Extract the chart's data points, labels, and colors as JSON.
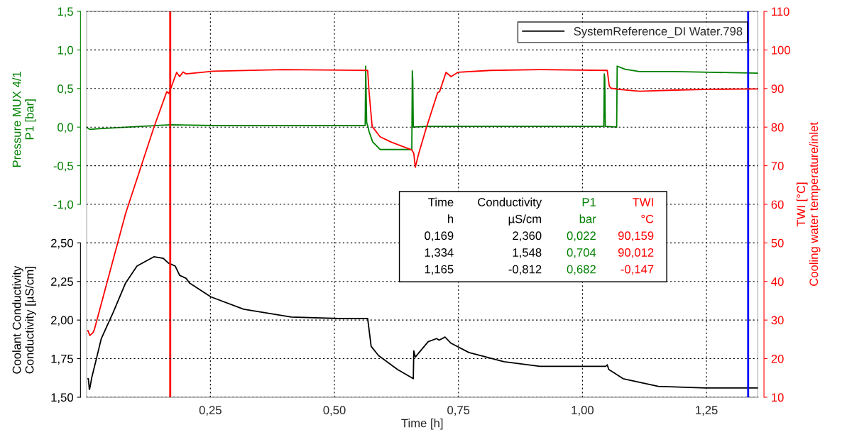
{
  "chart_data": {
    "type": "line",
    "xlabel": "Time [h]",
    "ylabel": "Pressure MUX 4/1\nP1 [bar]",
    "y2label": "TWI [°C]\nCooling water temperature/inlet",
    "y3label": "Coolant Conductivity\nConductivity [µS/cm]",
    "xlim": [
      0,
      1.354
    ],
    "xticks": [
      {
        "value": 0.25,
        "label": "0,25"
      },
      {
        "value": 0.5,
        "label": "0,50"
      },
      {
        "value": 0.75,
        "label": "0,75"
      },
      {
        "value": 1.0,
        "label": "1,00"
      },
      {
        "value": 1.25,
        "label": "1,25"
      }
    ],
    "ylim": [
      -3.5,
      1.5
    ],
    "yticks": [
      {
        "value": -1.0,
        "label": "-1,0"
      },
      {
        "value": -0.5,
        "label": "-0,5"
      },
      {
        "value": 0.0,
        "label": "0,0"
      },
      {
        "value": 0.5,
        "label": "0,5"
      },
      {
        "value": 1.0,
        "label": "1,0"
      },
      {
        "value": 1.5,
        "label": "1,5"
      }
    ],
    "y2lim": [
      10,
      110
    ],
    "y2ticks": [
      10,
      20,
      30,
      40,
      50,
      60,
      70,
      80,
      90,
      100,
      110
    ],
    "y3lim": [
      1.5,
      4.0
    ],
    "y3ticks": [
      {
        "value": 1.5,
        "label": "1,50"
      },
      {
        "value": 1.75,
        "label": "1,75"
      },
      {
        "value": 2.0,
        "label": "2,00"
      },
      {
        "value": 2.25,
        "label": "2,25"
      },
      {
        "value": 2.5,
        "label": "2,50"
      }
    ],
    "grid": true,
    "legend": "top right",
    "line_style": "solid",
    "series": [
      {
        "name": "SystemReference_DI Water.798",
        "color": "#000000",
        "axis": "y3",
        "x": [
          0.003,
          0.004,
          0.006,
          0.007,
          0.011,
          0.021,
          0.03,
          0.054,
          0.079,
          0.102,
          0.136,
          0.155,
          0.165,
          0.179,
          0.188,
          0.201,
          0.208,
          0.251,
          0.317,
          0.413,
          0.509,
          0.567,
          0.574,
          0.589,
          0.627,
          0.659,
          0.66,
          0.663,
          0.689,
          0.706,
          0.711,
          0.723,
          0.735,
          0.771,
          0.842,
          0.914,
          1.047,
          1.05,
          1.053,
          1.082,
          1.153,
          1.248,
          1.354
        ],
        "values": [
          1.62,
          1.62,
          1.55,
          1.56,
          1.63,
          1.76,
          1.88,
          2.05,
          2.24,
          2.35,
          2.41,
          2.4,
          2.37,
          2.35,
          2.29,
          2.27,
          2.24,
          2.15,
          2.07,
          2.02,
          2.01,
          2.01,
          1.83,
          1.77,
          1.68,
          1.62,
          1.8,
          1.76,
          1.86,
          1.88,
          1.87,
          1.89,
          1.85,
          1.79,
          1.73,
          1.7,
          1.7,
          1.71,
          1.68,
          1.62,
          1.57,
          1.56,
          1.56
        ]
      },
      {
        "color": "#008000",
        "axis": "y",
        "x": [
          0.0,
          0.007,
          0.026,
          0.169,
          0.255,
          0.562,
          0.563,
          0.565,
          0.567,
          0.57,
          0.577,
          0.592,
          0.656,
          0.657,
          0.658,
          0.659,
          0.685,
          1.043,
          1.044,
          1.045,
          1.046,
          1.069,
          1.07,
          1.086,
          1.115,
          1.186,
          1.258,
          1.354
        ],
        "values": [
          0.0,
          -0.03,
          -0.02,
          0.03,
          0.02,
          0.02,
          0.79,
          0.06,
          0.02,
          -0.06,
          -0.19,
          -0.29,
          -0.29,
          0.73,
          0.6,
          0.0,
          0.01,
          0.01,
          0.69,
          0.63,
          0.01,
          0.0,
          0.79,
          0.75,
          0.72,
          0.72,
          0.71,
          0.7
        ]
      },
      {
        "color": "#ff0000",
        "axis": "y2",
        "x": [
          0.003,
          0.007,
          0.013,
          0.016,
          0.079,
          0.136,
          0.162,
          0.166,
          0.17,
          0.182,
          0.188,
          0.195,
          0.201,
          0.234,
          0.255,
          0.398,
          0.562,
          0.567,
          0.57,
          0.576,
          0.592,
          0.613,
          0.656,
          0.66,
          0.663,
          0.67,
          0.685,
          0.708,
          0.712,
          0.725,
          0.735,
          0.749,
          0.814,
          0.914,
          1.05,
          1.054,
          1.057,
          1.072,
          1.115,
          1.186,
          1.258,
          1.354
        ],
        "values": [
          27.3,
          26.0,
          26.7,
          27.5,
          57.6,
          79.9,
          89.2,
          88.7,
          90.0,
          94.2,
          93.1,
          94.3,
          93.8,
          94.2,
          94.5,
          94.9,
          94.7,
          94.7,
          88.9,
          80.2,
          77.5,
          76.2,
          74.1,
          73.2,
          69.6,
          73.2,
          79.7,
          88.9,
          89.2,
          94.2,
          93.1,
          94.2,
          94.7,
          94.9,
          94.7,
          90.7,
          90.1,
          89.8,
          89.3,
          89.6,
          89.8,
          89.9
        ]
      }
    ],
    "ref_lines": [
      {
        "axis": "x",
        "value": 0.169,
        "color": "#ff0000"
      },
      {
        "axis": "x",
        "value": 1.334,
        "color": "#0000ff"
      }
    ],
    "annotations": [
      "Time",
      "Conductivity",
      "P1",
      "TWI",
      "h",
      "µS/cm",
      "bar",
      "°C",
      "0,169",
      "2,360",
      "0,022",
      "90,159",
      "1,334",
      "1,548",
      "0,704",
      "90,012",
      "1,165",
      "-0,812",
      "0,682",
      "-0,147"
    ]
  }
}
